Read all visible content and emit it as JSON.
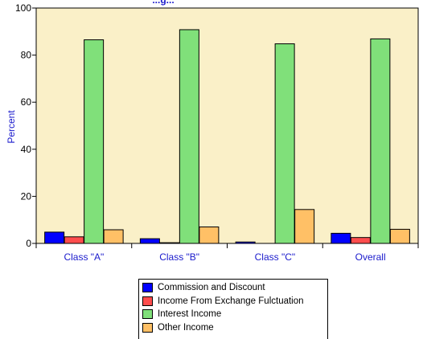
{
  "chart_data": {
    "type": "bar",
    "title": "...g...",
    "ylabel": "Percent",
    "xlabel": "",
    "ylim": [
      0,
      100
    ],
    "yticks": [
      0,
      20,
      40,
      60,
      80,
      100
    ],
    "categories": [
      "Class \"A\"",
      "Class \"B\"",
      "Class \"C\"",
      "Overall"
    ],
    "series": [
      {
        "name": "Commission and Discount",
        "color": "#0000ff",
        "values": [
          4.8,
          2.0,
          0.6,
          4.3
        ]
      },
      {
        "name": "Income From Exchange Fulctuation",
        "color": "#ff4d4d",
        "values": [
          2.8,
          0.3,
          0.0,
          2.5
        ]
      },
      {
        "name": "Interest Income",
        "color": "#80e07a",
        "values": [
          86.5,
          90.8,
          84.8,
          86.9
        ]
      },
      {
        "name": "Other Income",
        "color": "#ffc066",
        "values": [
          5.8,
          7.0,
          14.4,
          6.0
        ]
      }
    ],
    "plot_background": "#faf0c8",
    "grid": false,
    "legend_position": "bottom"
  }
}
